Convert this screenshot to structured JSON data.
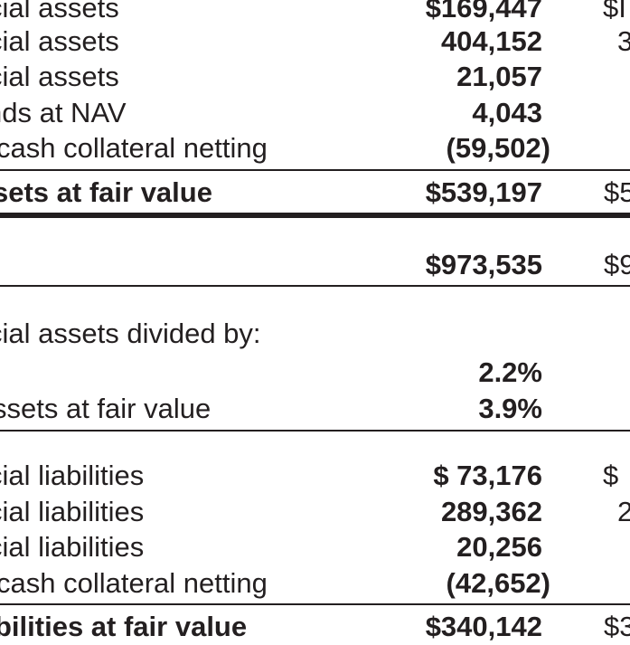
{
  "top_rows": [
    {
      "label": "cial assets",
      "value": "$169,447",
      "prior": "$I",
      "bold_value": true
    },
    {
      "label": "cial assets",
      "value": "404,152",
      "prior": "3",
      "bold_value": true
    },
    {
      "label": "cial assets",
      "value": "21,057",
      "prior": "",
      "bold_value": true
    },
    {
      "label": "nds at NAV",
      "value": "4,043",
      "prior": "",
      "bold_value": true
    },
    {
      "label": "cash collateral netting",
      "value": "(59,502)",
      "prior": "",
      "bold_value": true
    }
  ],
  "total_assets": {
    "label": "sets at fair value",
    "value": "$539,197",
    "prior": "$5"
  },
  "grand_total": {
    "value": "$973,535",
    "prior": "$9"
  },
  "ratio_header": "cial assets divided by:",
  "ratios": [
    {
      "label": "",
      "value": "2.2%"
    },
    {
      "label": "ssets at fair value",
      "value": "3.9%"
    }
  ],
  "liability_rows": [
    {
      "label": "cial liabilities",
      "value": "$ 73,176",
      "prior": "$"
    },
    {
      "label": "cial liabilities",
      "value": "289,362",
      "prior": "2"
    },
    {
      "label": "cial liabilities",
      "value": "20,256",
      "prior": ""
    },
    {
      "label": "cash collateral netting",
      "value": "(42,652)",
      "prior": ""
    }
  ],
  "total_liabilities": {
    "label": "bilities at fair value",
    "value": "$340,142",
    "prior": "$3"
  }
}
